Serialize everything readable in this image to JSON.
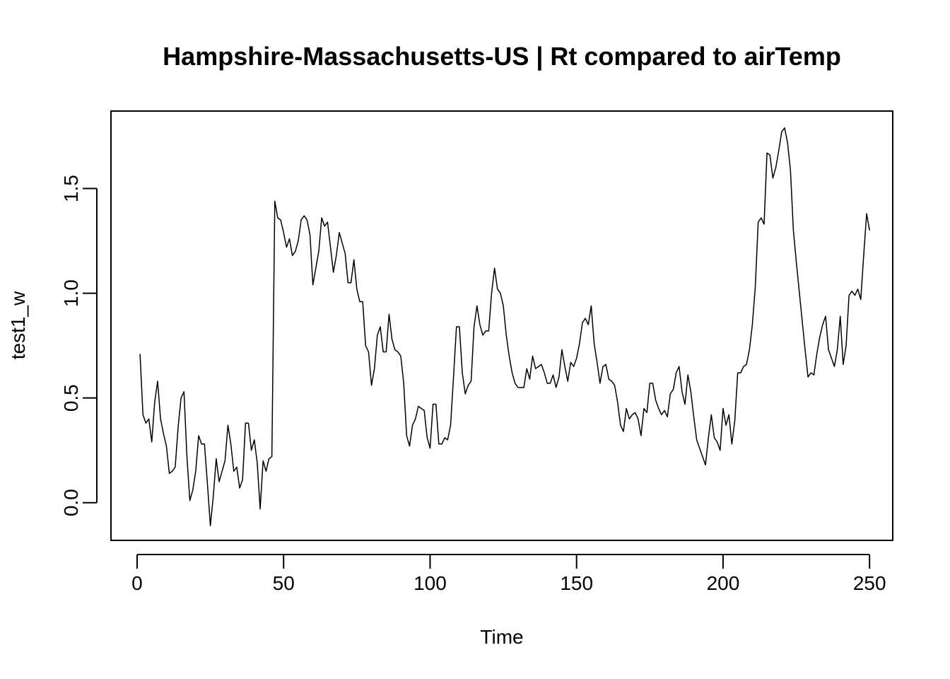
{
  "chart_data": {
    "type": "line",
    "title": "Hampshire-Massachusetts-US | Rt compared to airTemp",
    "xlabel": "Time",
    "ylabel": "test1_w",
    "xlim": [
      -8.92,
      257.92
    ],
    "ylim": [
      -0.18,
      1.87
    ],
    "grid": false,
    "xticks": [
      0,
      50,
      100,
      150,
      200,
      250
    ],
    "xtick_labels": [
      "0",
      "50",
      "100",
      "150",
      "200",
      "250"
    ],
    "yticks": [
      0.0,
      0.5,
      1.0,
      1.5
    ],
    "ytick_labels": [
      "0.0",
      "0.5",
      "1.0",
      "1.5"
    ],
    "series": [
      {
        "x_start": 1,
        "x_step": 1,
        "values": [
          0.71,
          0.42,
          0.38,
          0.4,
          0.29,
          0.48,
          0.58,
          0.4,
          0.33,
          0.27,
          0.14,
          0.15,
          0.17,
          0.36,
          0.5,
          0.53,
          0.22,
          0.01,
          0.06,
          0.15,
          0.32,
          0.28,
          0.28,
          0.09,
          -0.11,
          0.03,
          0.21,
          0.1,
          0.15,
          0.2,
          0.37,
          0.28,
          0.15,
          0.17,
          0.07,
          0.11,
          0.38,
          0.38,
          0.25,
          0.3,
          0.19,
          -0.03,
          0.2,
          0.15,
          0.21,
          0.22,
          1.44,
          1.36,
          1.35,
          1.29,
          1.22,
          1.26,
          1.18,
          1.2,
          1.25,
          1.35,
          1.37,
          1.35,
          1.28,
          1.04,
          1.12,
          1.2,
          1.36,
          1.32,
          1.34,
          1.22,
          1.1,
          1.18,
          1.29,
          1.24,
          1.19,
          1.05,
          1.05,
          1.16,
          1.02,
          0.96,
          0.96,
          0.75,
          0.72,
          0.56,
          0.64,
          0.8,
          0.84,
          0.72,
          0.72,
          0.9,
          0.78,
          0.73,
          0.72,
          0.7,
          0.57,
          0.32,
          0.27,
          0.37,
          0.4,
          0.46,
          0.45,
          0.44,
          0.31,
          0.26,
          0.47,
          0.47,
          0.28,
          0.28,
          0.31,
          0.3,
          0.37,
          0.6,
          0.84,
          0.84,
          0.62,
          0.52,
          0.56,
          0.58,
          0.84,
          0.94,
          0.85,
          0.8,
          0.82,
          0.82,
          1.0,
          1.12,
          1.02,
          1.0,
          0.94,
          0.8,
          0.7,
          0.62,
          0.57,
          0.55,
          0.55,
          0.55,
          0.64,
          0.59,
          0.7,
          0.64,
          0.65,
          0.66,
          0.62,
          0.57,
          0.57,
          0.61,
          0.55,
          0.6,
          0.73,
          0.65,
          0.58,
          0.67,
          0.65,
          0.69,
          0.76,
          0.86,
          0.88,
          0.85,
          0.94,
          0.76,
          0.67,
          0.57,
          0.65,
          0.66,
          0.59,
          0.58,
          0.56,
          0.48,
          0.37,
          0.34,
          0.45,
          0.4,
          0.42,
          0.43,
          0.4,
          0.32,
          0.45,
          0.43,
          0.57,
          0.57,
          0.49,
          0.45,
          0.42,
          0.44,
          0.41,
          0.52,
          0.54,
          0.62,
          0.65,
          0.53,
          0.47,
          0.61,
          0.53,
          0.41,
          0.3,
          0.26,
          0.22,
          0.18,
          0.31,
          0.42,
          0.31,
          0.29,
          0.25,
          0.45,
          0.37,
          0.42,
          0.28,
          0.39,
          0.62,
          0.62,
          0.65,
          0.66,
          0.73,
          0.85,
          1.03,
          1.34,
          1.36,
          1.33,
          1.67,
          1.66,
          1.55,
          1.6,
          1.68,
          1.77,
          1.79,
          1.72,
          1.59,
          1.3,
          1.15,
          1.01,
          0.87,
          0.73,
          0.6,
          0.62,
          0.61,
          0.71,
          0.79,
          0.85,
          0.89,
          0.73,
          0.69,
          0.65,
          0.73,
          0.89,
          0.66,
          0.75,
          0.99,
          1.01,
          0.99,
          1.02,
          0.97,
          1.18,
          1.38,
          1.3
        ]
      }
    ]
  }
}
